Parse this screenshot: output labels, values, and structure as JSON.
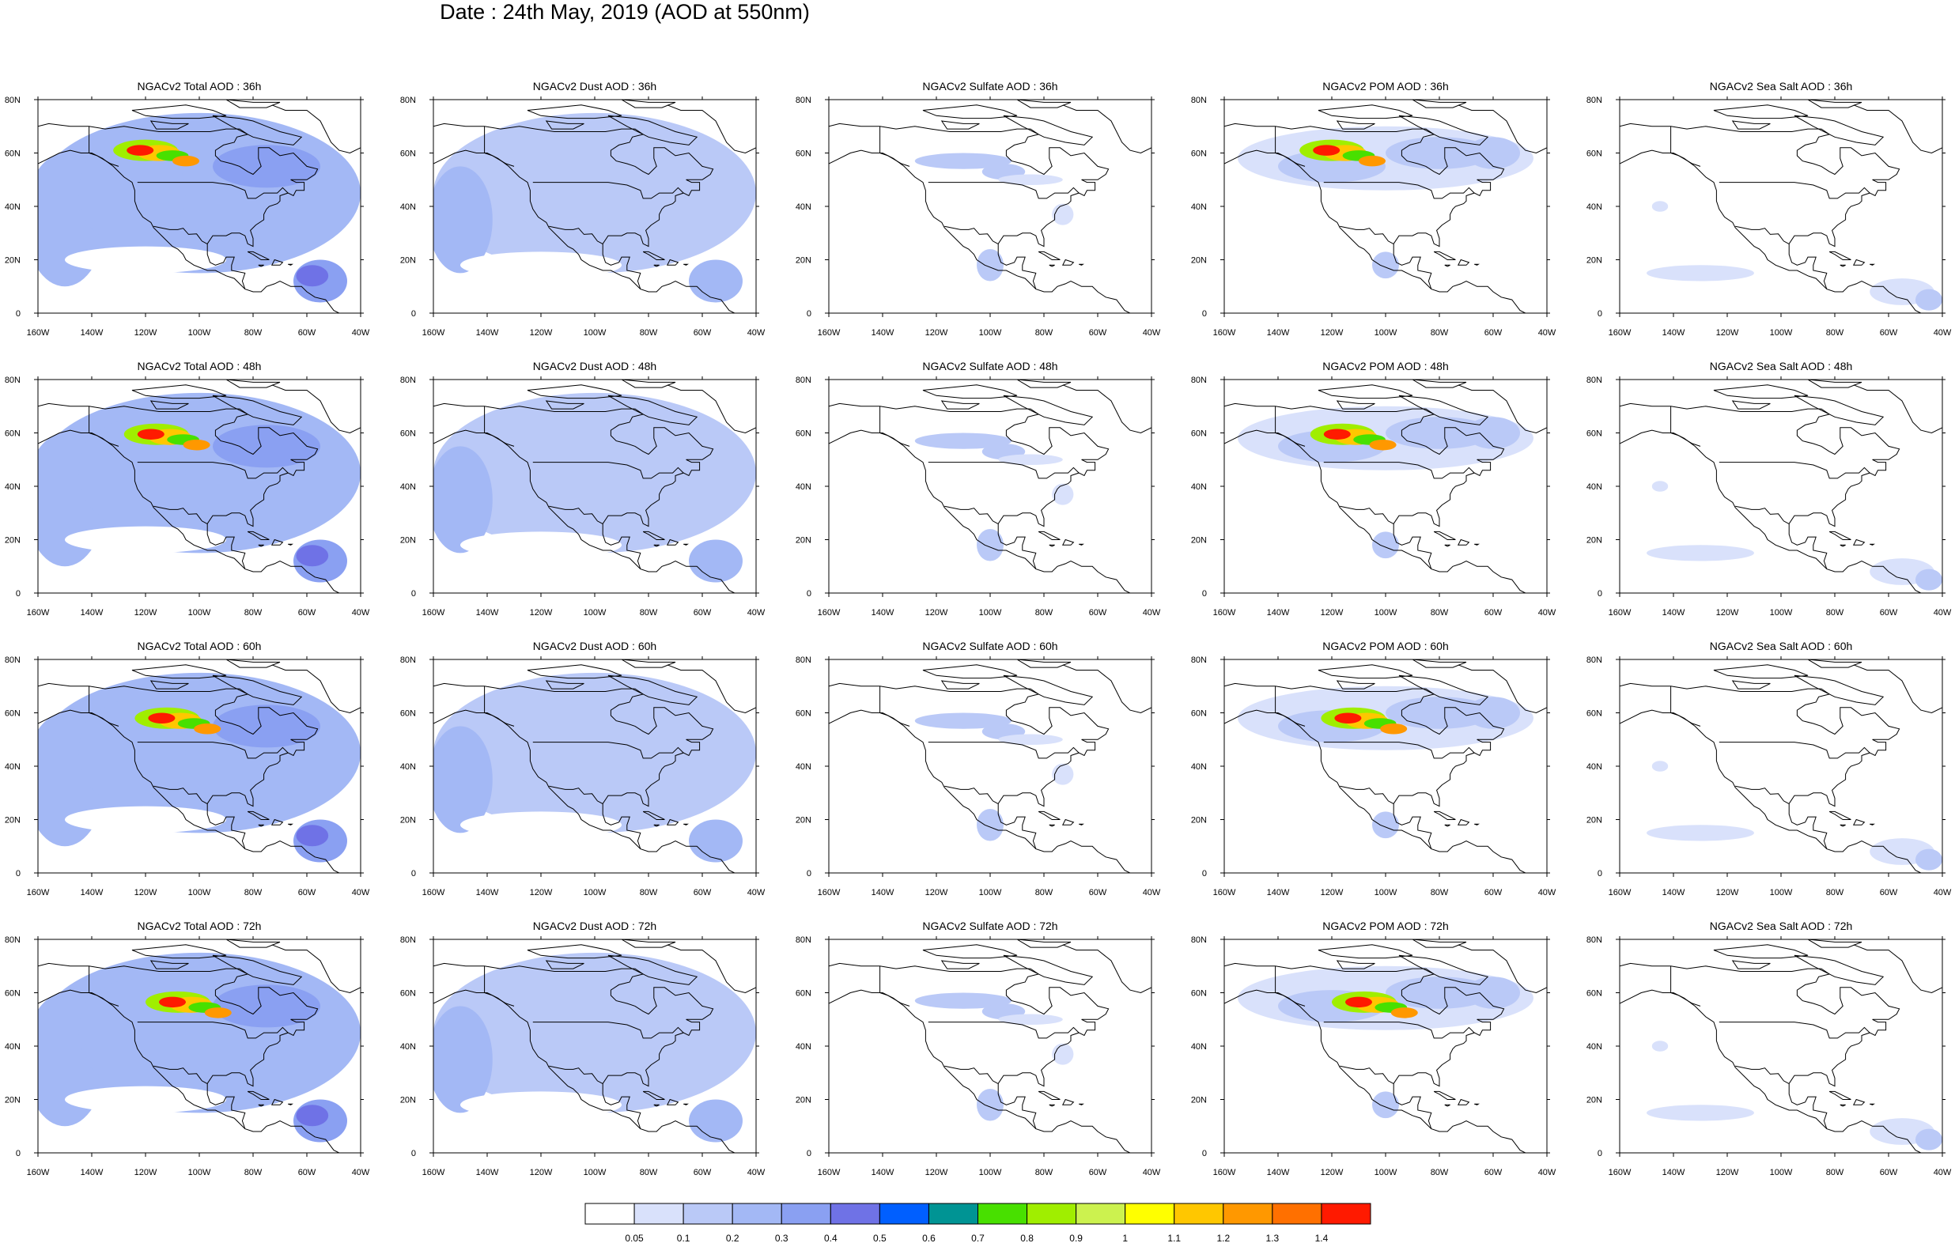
{
  "figure_title": "Date : 24th May, 2019 (AOD at 550nm)",
  "grid": {
    "rows": [
      "36h",
      "48h",
      "60h",
      "72h"
    ],
    "columns": [
      "Total",
      "Dust",
      "Sulfate",
      "POM",
      "Sea Salt"
    ]
  },
  "panels": [
    {
      "title": "NGACv2 Total AOD : 36h",
      "species": "Total",
      "lead": "36h"
    },
    {
      "title": "NGACv2 Dust AOD : 36h",
      "species": "Dust",
      "lead": "36h"
    },
    {
      "title": "NGACv2 Sulfate AOD : 36h",
      "species": "Sulfate",
      "lead": "36h"
    },
    {
      "title": "NGACv2 POM AOD : 36h",
      "species": "POM",
      "lead": "36h"
    },
    {
      "title": "NGACv2 Sea Salt AOD : 36h",
      "species": "Sea Salt",
      "lead": "36h"
    },
    {
      "title": "NGACv2 Total AOD : 48h",
      "species": "Total",
      "lead": "48h"
    },
    {
      "title": "NGACv2 Dust AOD : 48h",
      "species": "Dust",
      "lead": "48h"
    },
    {
      "title": "NGACv2 Sulfate AOD : 48h",
      "species": "Sulfate",
      "lead": "48h"
    },
    {
      "title": "NGACv2 POM AOD : 48h",
      "species": "POM",
      "lead": "48h"
    },
    {
      "title": "NGACv2 Sea Salt AOD : 48h",
      "species": "Sea Salt",
      "lead": "48h"
    },
    {
      "title": "NGACv2 Total AOD : 60h",
      "species": "Total",
      "lead": "60h"
    },
    {
      "title": "NGACv2 Dust AOD : 60h",
      "species": "Dust",
      "lead": "60h"
    },
    {
      "title": "NGACv2 Sulfate AOD : 60h",
      "species": "Sulfate",
      "lead": "60h"
    },
    {
      "title": "NGACv2 POM AOD : 60h",
      "species": "POM",
      "lead": "60h"
    },
    {
      "title": "NGACv2 Sea Salt AOD : 60h",
      "species": "Sea Salt",
      "lead": "60h"
    },
    {
      "title": "NGACv2 Total AOD : 72h",
      "species": "Total",
      "lead": "72h"
    },
    {
      "title": "NGACv2 Dust AOD : 72h",
      "species": "Dust",
      "lead": "72h"
    },
    {
      "title": "NGACv2 Sulfate AOD : 72h",
      "species": "Sulfate",
      "lead": "72h"
    },
    {
      "title": "NGACv2 POM AOD : 72h",
      "species": "POM",
      "lead": "72h"
    },
    {
      "title": "NGACv2 Sea Salt  AOD : 72h",
      "species": "Sea Salt",
      "lead": "72h"
    }
  ],
  "axes": {
    "lon_ticks": [
      "160W",
      "140W",
      "120W",
      "100W",
      "80W",
      "60W",
      "40W"
    ],
    "lon_values": [
      -160,
      -140,
      -120,
      -100,
      -80,
      -60,
      -40
    ],
    "lat_ticks": [
      "0",
      "20N",
      "40N",
      "60N",
      "80N"
    ],
    "lat_values": [
      0,
      20,
      40,
      60,
      80
    ],
    "lon_range": [
      -160,
      -40
    ],
    "lat_range": [
      0,
      80
    ]
  },
  "colorbar": {
    "labels": [
      "0.05",
      "0.1",
      "0.2",
      "0.3",
      "0.4",
      "0.5",
      "0.6",
      "0.7",
      "0.8",
      "0.9",
      "1",
      "1.1",
      "1.2",
      "1.3",
      "1.4"
    ],
    "colors": [
      "#ffffff",
      "#d9e1fb",
      "#bac9f7",
      "#a3b8f5",
      "#8aa0f2",
      "#6f72e6",
      "#005fff",
      "#009494",
      "#48e000",
      "#a0ee00",
      "#ccf24f",
      "#ffff00",
      "#ffc700",
      "#ff9800",
      "#ff7000",
      "#ff1a00"
    ]
  }
}
